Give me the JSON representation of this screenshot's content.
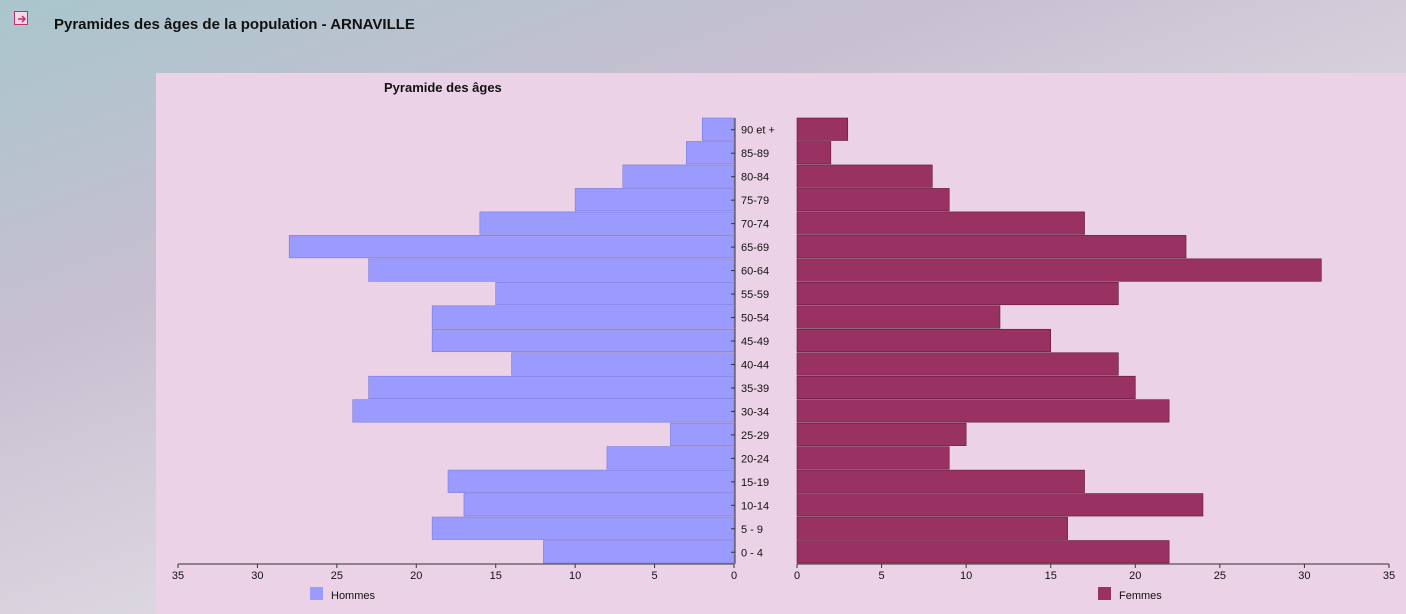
{
  "page": {
    "title": "Pyramides des âges de la population - ARNAVILLE",
    "icon": "arrow-right-icon"
  },
  "colors": {
    "hommes": "#9b9bff",
    "femmes": "#993163",
    "panel": "#ecd2e6"
  },
  "chart_data": {
    "type": "bar",
    "orientation": "horizontal-pyramid",
    "title": "Pyramide des âges",
    "categories": [
      "0 - 4",
      "5 - 9",
      "10-14",
      "15-19",
      "20-24",
      "25-29",
      "30-34",
      "35-39",
      "40-44",
      "45-49",
      "50-54",
      "55-59",
      "60-64",
      "65-69",
      "70-74",
      "75-79",
      "80-84",
      "85-89",
      "90 et +"
    ],
    "series": [
      {
        "name": "Hommes",
        "values": [
          12,
          19,
          17,
          18,
          8,
          4,
          24,
          23,
          14,
          19,
          19,
          15,
          23,
          28,
          16,
          10,
          7,
          3,
          2
        ]
      },
      {
        "name": "Femmes",
        "values": [
          22,
          16,
          24,
          17,
          9,
          10,
          22,
          20,
          19,
          15,
          12,
          19,
          31,
          23,
          17,
          9,
          8,
          2,
          3
        ]
      }
    ],
    "xlim": [
      0,
      35
    ],
    "ticks": [
      0,
      5,
      10,
      15,
      20,
      25,
      30,
      35
    ],
    "legend": "bottom",
    "grid": false
  }
}
